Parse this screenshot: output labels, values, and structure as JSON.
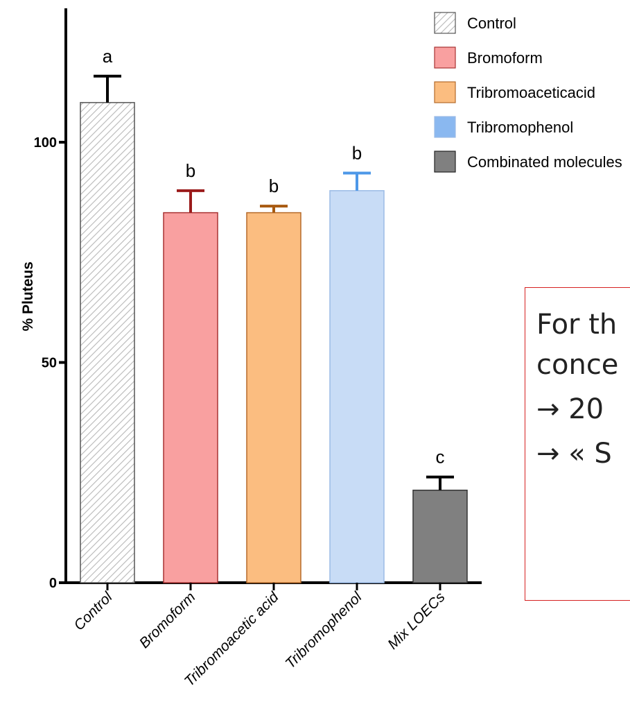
{
  "chart_data": {
    "type": "bar",
    "title": "",
    "xlabel": "",
    "ylabel": "% Pluteus",
    "ylim": [
      0,
      130
    ],
    "yticks": [
      "0",
      "50",
      "100"
    ],
    "categories": [
      "Control",
      "Bromoform",
      "Tribromoacetic acid",
      "Tribromophenol",
      "Mix LOECs"
    ],
    "values": [
      109,
      84,
      84,
      89,
      21
    ],
    "errors": [
      6,
      5,
      1.5,
      4,
      3
    ],
    "significance_letters": [
      "a",
      "b",
      "b",
      "b",
      "c"
    ],
    "legend": {
      "placement": "top-right",
      "entries": [
        "Control",
        "Bromoform",
        "Tribromoaceticacid",
        "Tribromophenol",
        "Combinated molecules"
      ]
    },
    "bar_fill": [
      "#ffffff",
      "#f9a0a0",
      "#fbbd80",
      "#c8dcf6",
      "#808080"
    ],
    "bar_stroke": [
      "#555555",
      "#a83232",
      "#b56a2a",
      "#9bbbe5",
      "#333333"
    ],
    "error_color": [
      "#000000",
      "#9b1b1b",
      "#a85a10",
      "#4d98e8",
      "#000000"
    ],
    "legend_fill": [
      "#ffffff",
      "#f9a0a0",
      "#fbbd80",
      "#8ab8f0",
      "#808080"
    ],
    "hatched": [
      true,
      false,
      false,
      false,
      false
    ]
  },
  "callout": {
    "lines": [
      "For th",
      "conce",
      "→ 20",
      "→ « S"
    ]
  }
}
